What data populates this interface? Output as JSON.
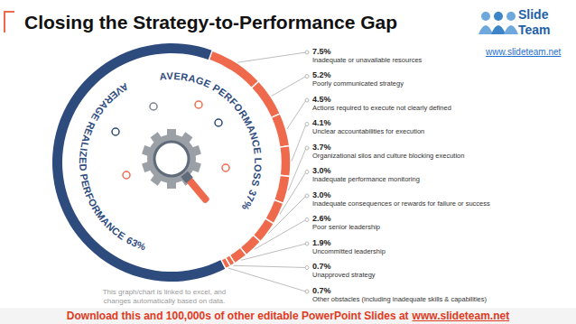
{
  "chart_data": {
    "type": "pie",
    "title": "Closing the Strategy-to-Performance Gap",
    "categories": [
      "Inadequate or unavailable resources",
      "Poorly communicated strategy",
      "Actions required to execute not clearly defined",
      "Unclear accountabilities for execution",
      "Organizational silos and culture blocking execution",
      "Inadequate performance monitoring",
      "Inadequate consequences or rewards for failure or success",
      "Poor senior leadership",
      "Uncommitted leadership",
      "Unapproved strategy",
      "Other obstacles (including inadequate skills & capabilities)"
    ],
    "values": [
      7.5,
      5.2,
      4.5,
      4.1,
      3.7,
      3.0,
      3.0,
      2.6,
      1.9,
      0.7,
      0.7
    ],
    "value_labels": [
      "7.5%",
      "5.2%",
      "4.5%",
      "4.1%",
      "3.7%",
      "3.0%",
      "3.0%",
      "2.6%",
      "1.9%",
      "0.7%",
      "0.7%"
    ],
    "color": "#ef6a4d",
    "data_labels": true,
    "groups": [
      {
        "label": "AVERAGE PERFORMANCE LOSS",
        "value": 37,
        "value_label": "37%",
        "color": "#ef6a4d"
      },
      {
        "label": "AVERAGE REALIZED PERFORMANCE",
        "value": 63,
        "value_label": "63%",
        "color": "#2e4b7e"
      }
    ],
    "note": "This graph/chart is linked to excel, and changes automatically based on data."
  },
  "logo": {
    "lines": [
      "Slide",
      "Team"
    ],
    "url": "www.slideteam.net"
  },
  "footer": {
    "text": "Download this and 100,000s of other editable PowerPoint Slides at",
    "link": "www.slideteam.net"
  }
}
